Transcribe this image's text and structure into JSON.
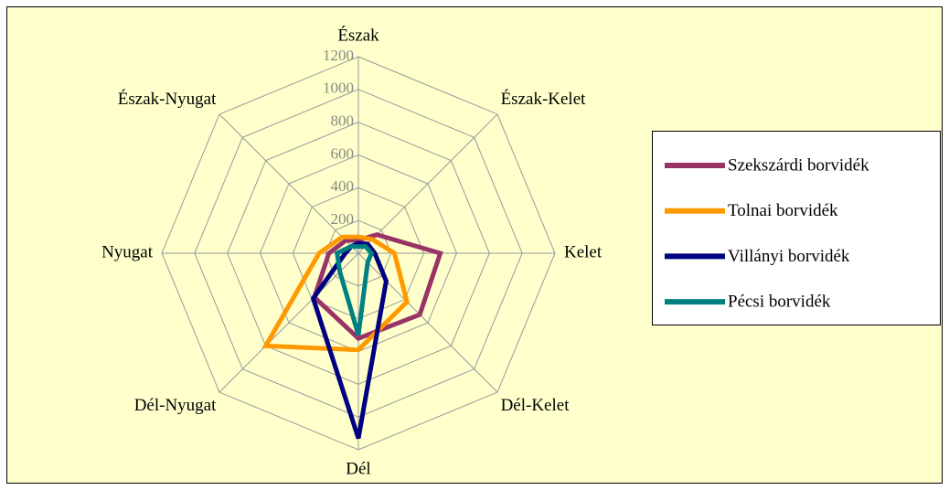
{
  "chart_data": {
    "type": "radar",
    "categories": [
      "Észak",
      "Észak-Kelet",
      "Kelet",
      "Dél-Kelet",
      "Dél",
      "Dél-Nyugat",
      "Nyugat",
      "Észak-Nyugat"
    ],
    "series": [
      {
        "name": "Szekszárdi borvidék",
        "color": "#993366",
        "values": [
          80,
          160,
          500,
          530,
          520,
          380,
          180,
          110
        ]
      },
      {
        "name": "Tolnai borvidék",
        "color": "#ff9900",
        "values": [
          100,
          120,
          220,
          420,
          590,
          800,
          240,
          140
        ]
      },
      {
        "name": "Villányi borvidék",
        "color": "#000080",
        "values": [
          60,
          80,
          100,
          240,
          1130,
          390,
          80,
          60
        ]
      },
      {
        "name": "Pécsi borvidék",
        "color": "#008080",
        "values": [
          40,
          60,
          80,
          80,
          500,
          160,
          130,
          60
        ]
      }
    ],
    "rlim": [
      0,
      1200
    ],
    "rticks": [
      200,
      400,
      600,
      800,
      1000,
      1200
    ],
    "grid": true,
    "legend": "right"
  }
}
